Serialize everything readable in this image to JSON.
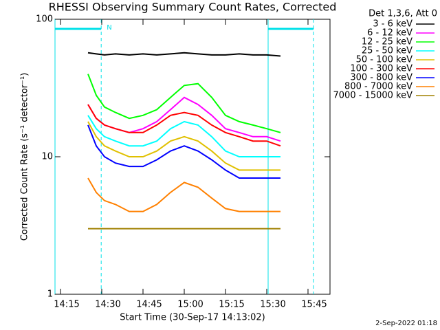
{
  "chart_data": {
    "type": "line",
    "title": "RHESSI Observing Summary Count Rates, Corrected",
    "x_label": "Start Time (30-Sep-17 14:13:02)",
    "y_label": "Corrected Count Rate (s⁻¹ detector⁻¹)",
    "legend_title": "Det 1,3,6, Att 0",
    "footer": "2-Sep-2022 01:18",
    "log_y": true,
    "xlim": [
      13,
      113
    ],
    "ylim": [
      1,
      100
    ],
    "xticks": [
      {
        "value": 15,
        "label": "14:15"
      },
      {
        "value": 30,
        "label": "14:30"
      },
      {
        "value": 45,
        "label": "14:45"
      },
      {
        "value": 60,
        "label": "15:00"
      },
      {
        "value": 75,
        "label": "15:15"
      },
      {
        "value": 90,
        "label": "15:30"
      },
      {
        "value": 105,
        "label": "15:45"
      }
    ],
    "yticks": [
      1,
      10,
      100
    ],
    "night_intervals": [
      [
        13,
        29.8
      ],
      [
        90.5,
        107
      ]
    ],
    "night_label": "N",
    "night_color": "#00e0e8",
    "x": [
      25,
      28,
      31,
      35,
      40,
      45,
      50,
      55,
      60,
      65,
      70,
      75,
      80,
      85,
      90,
      95
    ],
    "series": [
      {
        "name": "3 - 6 keV",
        "color": "#000000",
        "values": [
          57,
          56,
          55,
          56,
          55,
          56,
          55,
          56,
          57,
          56,
          55,
          55,
          56,
          55,
          55,
          54
        ]
      },
      {
        "name": "6 - 12 keV",
        "color": "#ff00ff",
        "values": [
          24,
          19,
          17,
          16,
          15,
          16,
          18,
          22,
          27,
          24,
          20,
          16,
          15,
          14,
          14,
          13
        ]
      },
      {
        "name": "12 - 25 keV",
        "color": "#00ff00",
        "values": [
          40,
          28,
          23,
          21,
          19,
          20,
          22,
          27,
          33,
          34,
          27,
          20,
          18,
          17,
          16,
          15
        ]
      },
      {
        "name": "25 - 50 keV",
        "color": "#00ffff",
        "values": [
          20,
          16,
          14,
          13,
          12,
          12,
          13,
          16,
          18,
          17,
          14,
          11,
          10,
          10,
          10,
          10
        ]
      },
      {
        "name": "50 - 100 keV",
        "color": "#e0c000",
        "values": [
          18,
          14,
          12,
          11,
          10,
          10,
          11,
          13,
          14,
          13,
          11,
          9,
          8,
          8,
          8,
          8
        ]
      },
      {
        "name": "100 - 300 keV",
        "color": "#ff0000",
        "values": [
          24,
          19,
          17,
          16,
          15,
          15,
          17,
          20,
          21,
          20,
          17,
          15,
          14,
          13,
          13,
          12
        ]
      },
      {
        "name": "300 - 800 keV",
        "color": "#0000ff",
        "values": [
          17,
          12,
          10,
          9,
          8.5,
          8.5,
          9.5,
          11,
          12,
          11,
          9.5,
          8,
          7,
          7,
          7,
          7
        ]
      },
      {
        "name": "800 - 7000 keV",
        "color": "#ff8000",
        "values": [
          7,
          5.5,
          4.8,
          4.5,
          4,
          4,
          4.5,
          5.5,
          6.5,
          6,
          5,
          4.2,
          4,
          4,
          4,
          4
        ]
      },
      {
        "name": "7000 - 15000 keV",
        "color": "#a08000",
        "values": [
          3,
          3,
          3,
          3,
          3,
          3,
          3,
          3,
          3,
          3,
          3,
          3,
          3,
          3,
          3,
          3
        ]
      }
    ]
  }
}
